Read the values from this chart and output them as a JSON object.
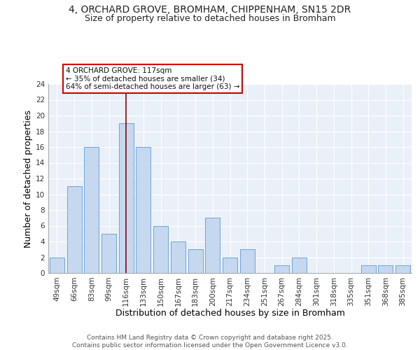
{
  "title_line1": "4, ORCHARD GROVE, BROMHAM, CHIPPENHAM, SN15 2DR",
  "title_line2": "Size of property relative to detached houses in Bromham",
  "xlabel": "Distribution of detached houses by size in Bromham",
  "ylabel": "Number of detached properties",
  "categories": [
    "49sqm",
    "66sqm",
    "83sqm",
    "99sqm",
    "116sqm",
    "133sqm",
    "150sqm",
    "167sqm",
    "183sqm",
    "200sqm",
    "217sqm",
    "234sqm",
    "251sqm",
    "267sqm",
    "284sqm",
    "301sqm",
    "318sqm",
    "335sqm",
    "351sqm",
    "368sqm",
    "385sqm"
  ],
  "values": [
    2,
    11,
    16,
    5,
    19,
    16,
    6,
    4,
    3,
    7,
    2,
    3,
    0,
    1,
    2,
    0,
    0,
    0,
    1,
    1,
    1
  ],
  "bar_color": "#c5d8f0",
  "bar_edge_color": "#5b9bd5",
  "highlight_index": 4,
  "highlight_line_color": "#8b0000",
  "annotation_text": "4 ORCHARD GROVE: 117sqm\n← 35% of detached houses are smaller (34)\n64% of semi-detached houses are larger (63) →",
  "annotation_box_color": "#ffffff",
  "annotation_box_edge": "#cc0000",
  "ylim": [
    0,
    24
  ],
  "yticks": [
    0,
    2,
    4,
    6,
    8,
    10,
    12,
    14,
    16,
    18,
    20,
    22,
    24
  ],
  "background_color": "#eaf0f8",
  "grid_color": "#ffffff",
  "footer_text": "Contains HM Land Registry data © Crown copyright and database right 2025.\nContains public sector information licensed under the Open Government Licence v3.0.",
  "title_fontsize": 10,
  "subtitle_fontsize": 9,
  "axis_label_fontsize": 9,
  "tick_fontsize": 7.5,
  "annotation_fontsize": 7.5,
  "footer_fontsize": 6.5
}
